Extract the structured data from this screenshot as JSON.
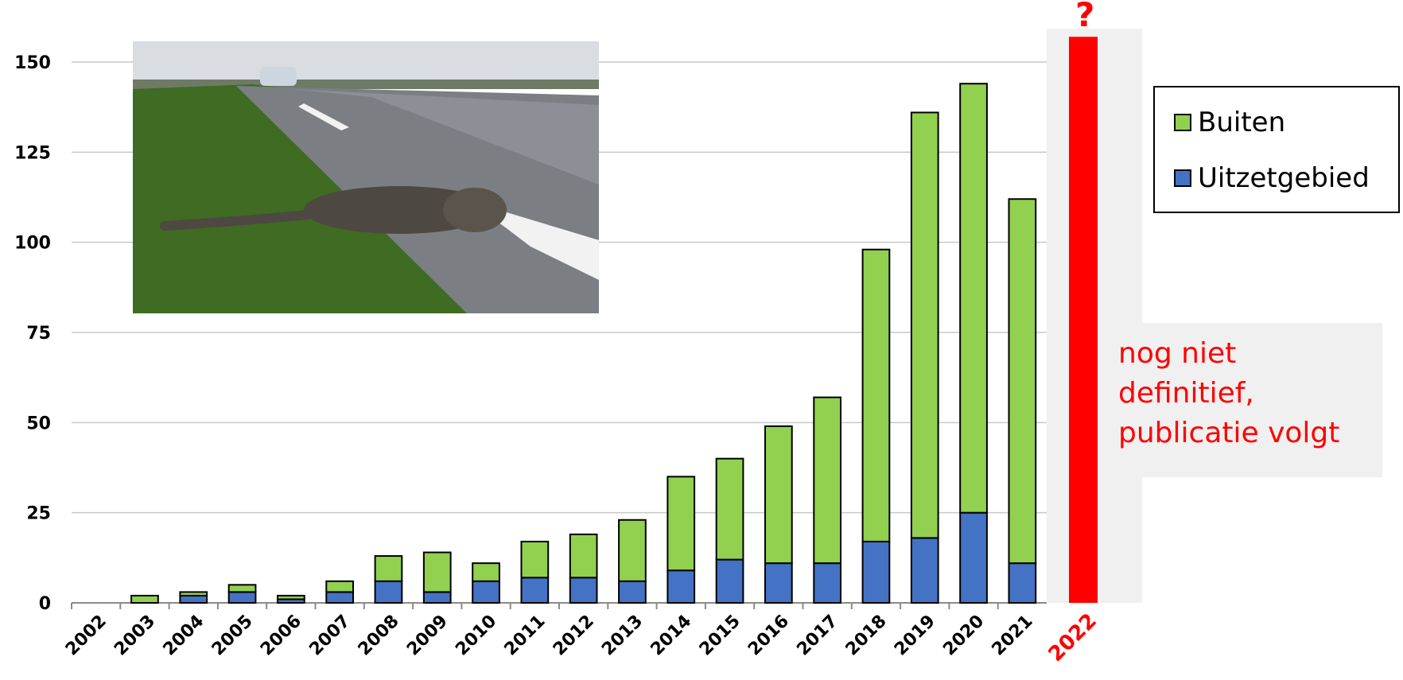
{
  "chart_data": {
    "type": "bar",
    "stacked": true,
    "categories": [
      "2002",
      "2003",
      "2004",
      "2005",
      "2006",
      "2007",
      "2008",
      "2009",
      "2010",
      "2011",
      "2012",
      "2013",
      "2014",
      "2015",
      "2016",
      "2017",
      "2018",
      "2019",
      "2020",
      "2021"
    ],
    "series": [
      {
        "name": "Uitzetgebied",
        "color": "#4472c4",
        "values": [
          0,
          0,
          2,
          3,
          1,
          3,
          6,
          3,
          6,
          7,
          7,
          6,
          9,
          12,
          11,
          11,
          17,
          18,
          25,
          11
        ]
      },
      {
        "name": "Buiten",
        "color": "#92d050",
        "values": [
          0,
          2,
          1,
          2,
          1,
          3,
          7,
          11,
          5,
          10,
          12,
          17,
          26,
          28,
          38,
          46,
          81,
          118,
          119,
          101
        ]
      }
    ],
    "highlighted_category": {
      "label": "2022",
      "value": 157,
      "color": "#ff0000",
      "marker": "?"
    },
    "yticks": [
      "0",
      "25",
      "50",
      "75",
      "100",
      "125",
      "150"
    ],
    "ylim": [
      0,
      150
    ],
    "grid": true,
    "legend": {
      "placement": "right",
      "entries": [
        "Buiten",
        "Uitzetgebied"
      ]
    },
    "annotation": "nog niet\ndefinitief,\npublicatie volgt"
  },
  "photo": {
    "description_icon": "otter-roadkill-photo"
  }
}
